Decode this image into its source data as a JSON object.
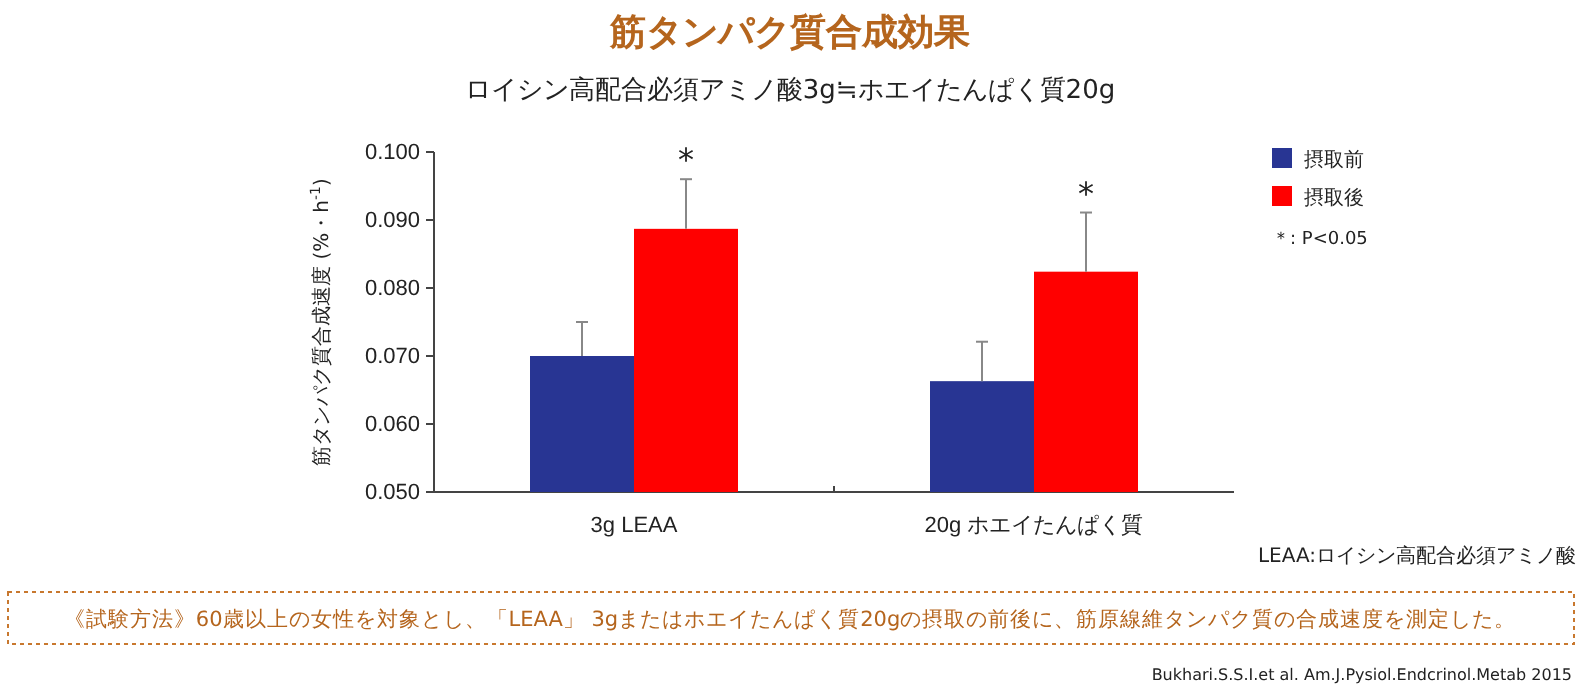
{
  "chart_data": {
    "type": "bar",
    "title": "筋タンパク質合成効果",
    "subtitle": "ロイシン高配合必須アミノ酸3g≒ホエイたんぱく質20g",
    "ylabel": "筋タンパク質合成速度 (%・h$^{-1}$)",
    "categories": [
      "3g  LEAA",
      "20g  ホエイたんぱく質"
    ],
    "series": [
      {
        "name": "摂取前",
        "color": "#283593",
        "values": [
          0.07,
          0.0663
        ],
        "errors": [
          [
            0.07,
            0.075
          ],
          [
            0.0663,
            0.0721
          ]
        ]
      },
      {
        "name": "摂取後",
        "color": "#ff0000",
        "values": [
          0.0887,
          0.0824
        ],
        "errors": [
          [
            0.0887,
            0.096
          ],
          [
            0.0824,
            0.0911
          ]
        ]
      }
    ],
    "ylim": [
      0.05,
      0.1
    ],
    "yticks": [
      {
        "value": 0.05,
        "label": "0.050"
      },
      {
        "value": 0.06,
        "label": "0.060"
      },
      {
        "value": 0.07,
        "label": "0.070"
      },
      {
        "value": 0.08,
        "label": "0.080"
      },
      {
        "value": 0.09,
        "label": "0.090"
      },
      {
        "value": 0.1,
        "label": "0.100"
      }
    ],
    "grid": false,
    "legend": "top right",
    "annotations": [
      "*",
      "*",
      "＊: P<0.05",
      "LEAA:ロイシン高配合必須アミノ酸",
      "《試験方法》60歳以上の女性を対象とし、「LEAA」 3gまたはホエイたんぱく質20gの摂取の前後に、筋原線維タンパク質の合成速度を測定した。",
      "Bukhari.S.S.I.et al. Am.J.Pysiol.Endcrinol.Metab 2015"
    ]
  }
}
